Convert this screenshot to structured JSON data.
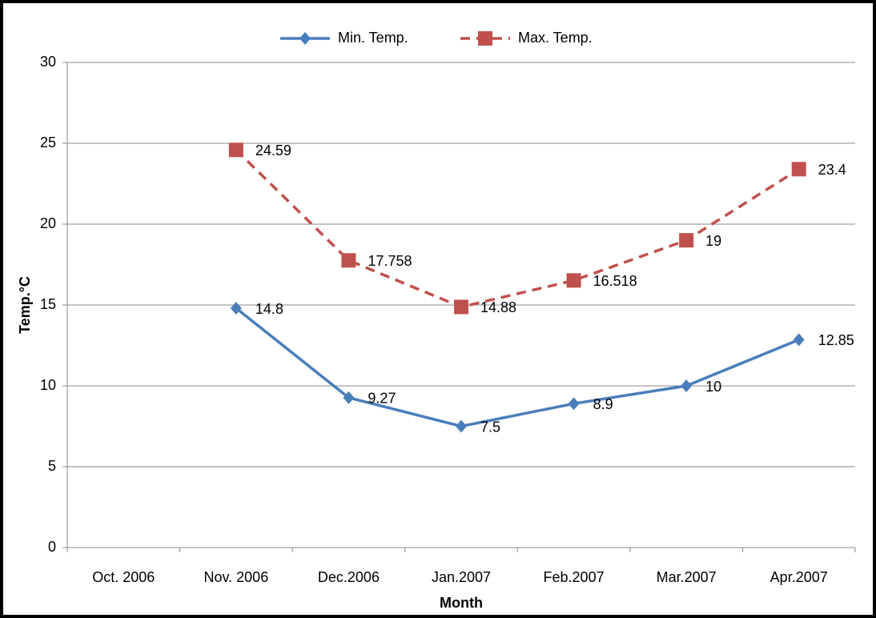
{
  "chart_data": {
    "type": "line",
    "x_label": "Month",
    "y_label": "Temp.°C",
    "categories": [
      "Oct. 2006",
      "Nov. 2006",
      "Dec.2006",
      "Jan.2007",
      "Feb.2007",
      "Mar.2007",
      "Apr.2007"
    ],
    "series": [
      {
        "name": "Min. Temp.",
        "color": "#4a7ebb",
        "marker": "diamond",
        "dashed": false,
        "values": [
          null,
          14.8,
          9.27,
          7.5,
          8.9,
          10,
          12.85
        ]
      },
      {
        "name": "Max. Temp.",
        "color": "#c0504d",
        "marker": "square",
        "dashed": true,
        "values": [
          null,
          24.59,
          17.758,
          14.88,
          16.518,
          19,
          23.4
        ]
      }
    ],
    "ylim": [
      0,
      30
    ],
    "yticks": [
      0,
      5,
      10,
      15,
      20,
      25,
      30
    ],
    "grid": true,
    "legend": "top",
    "data_labels": true
  }
}
